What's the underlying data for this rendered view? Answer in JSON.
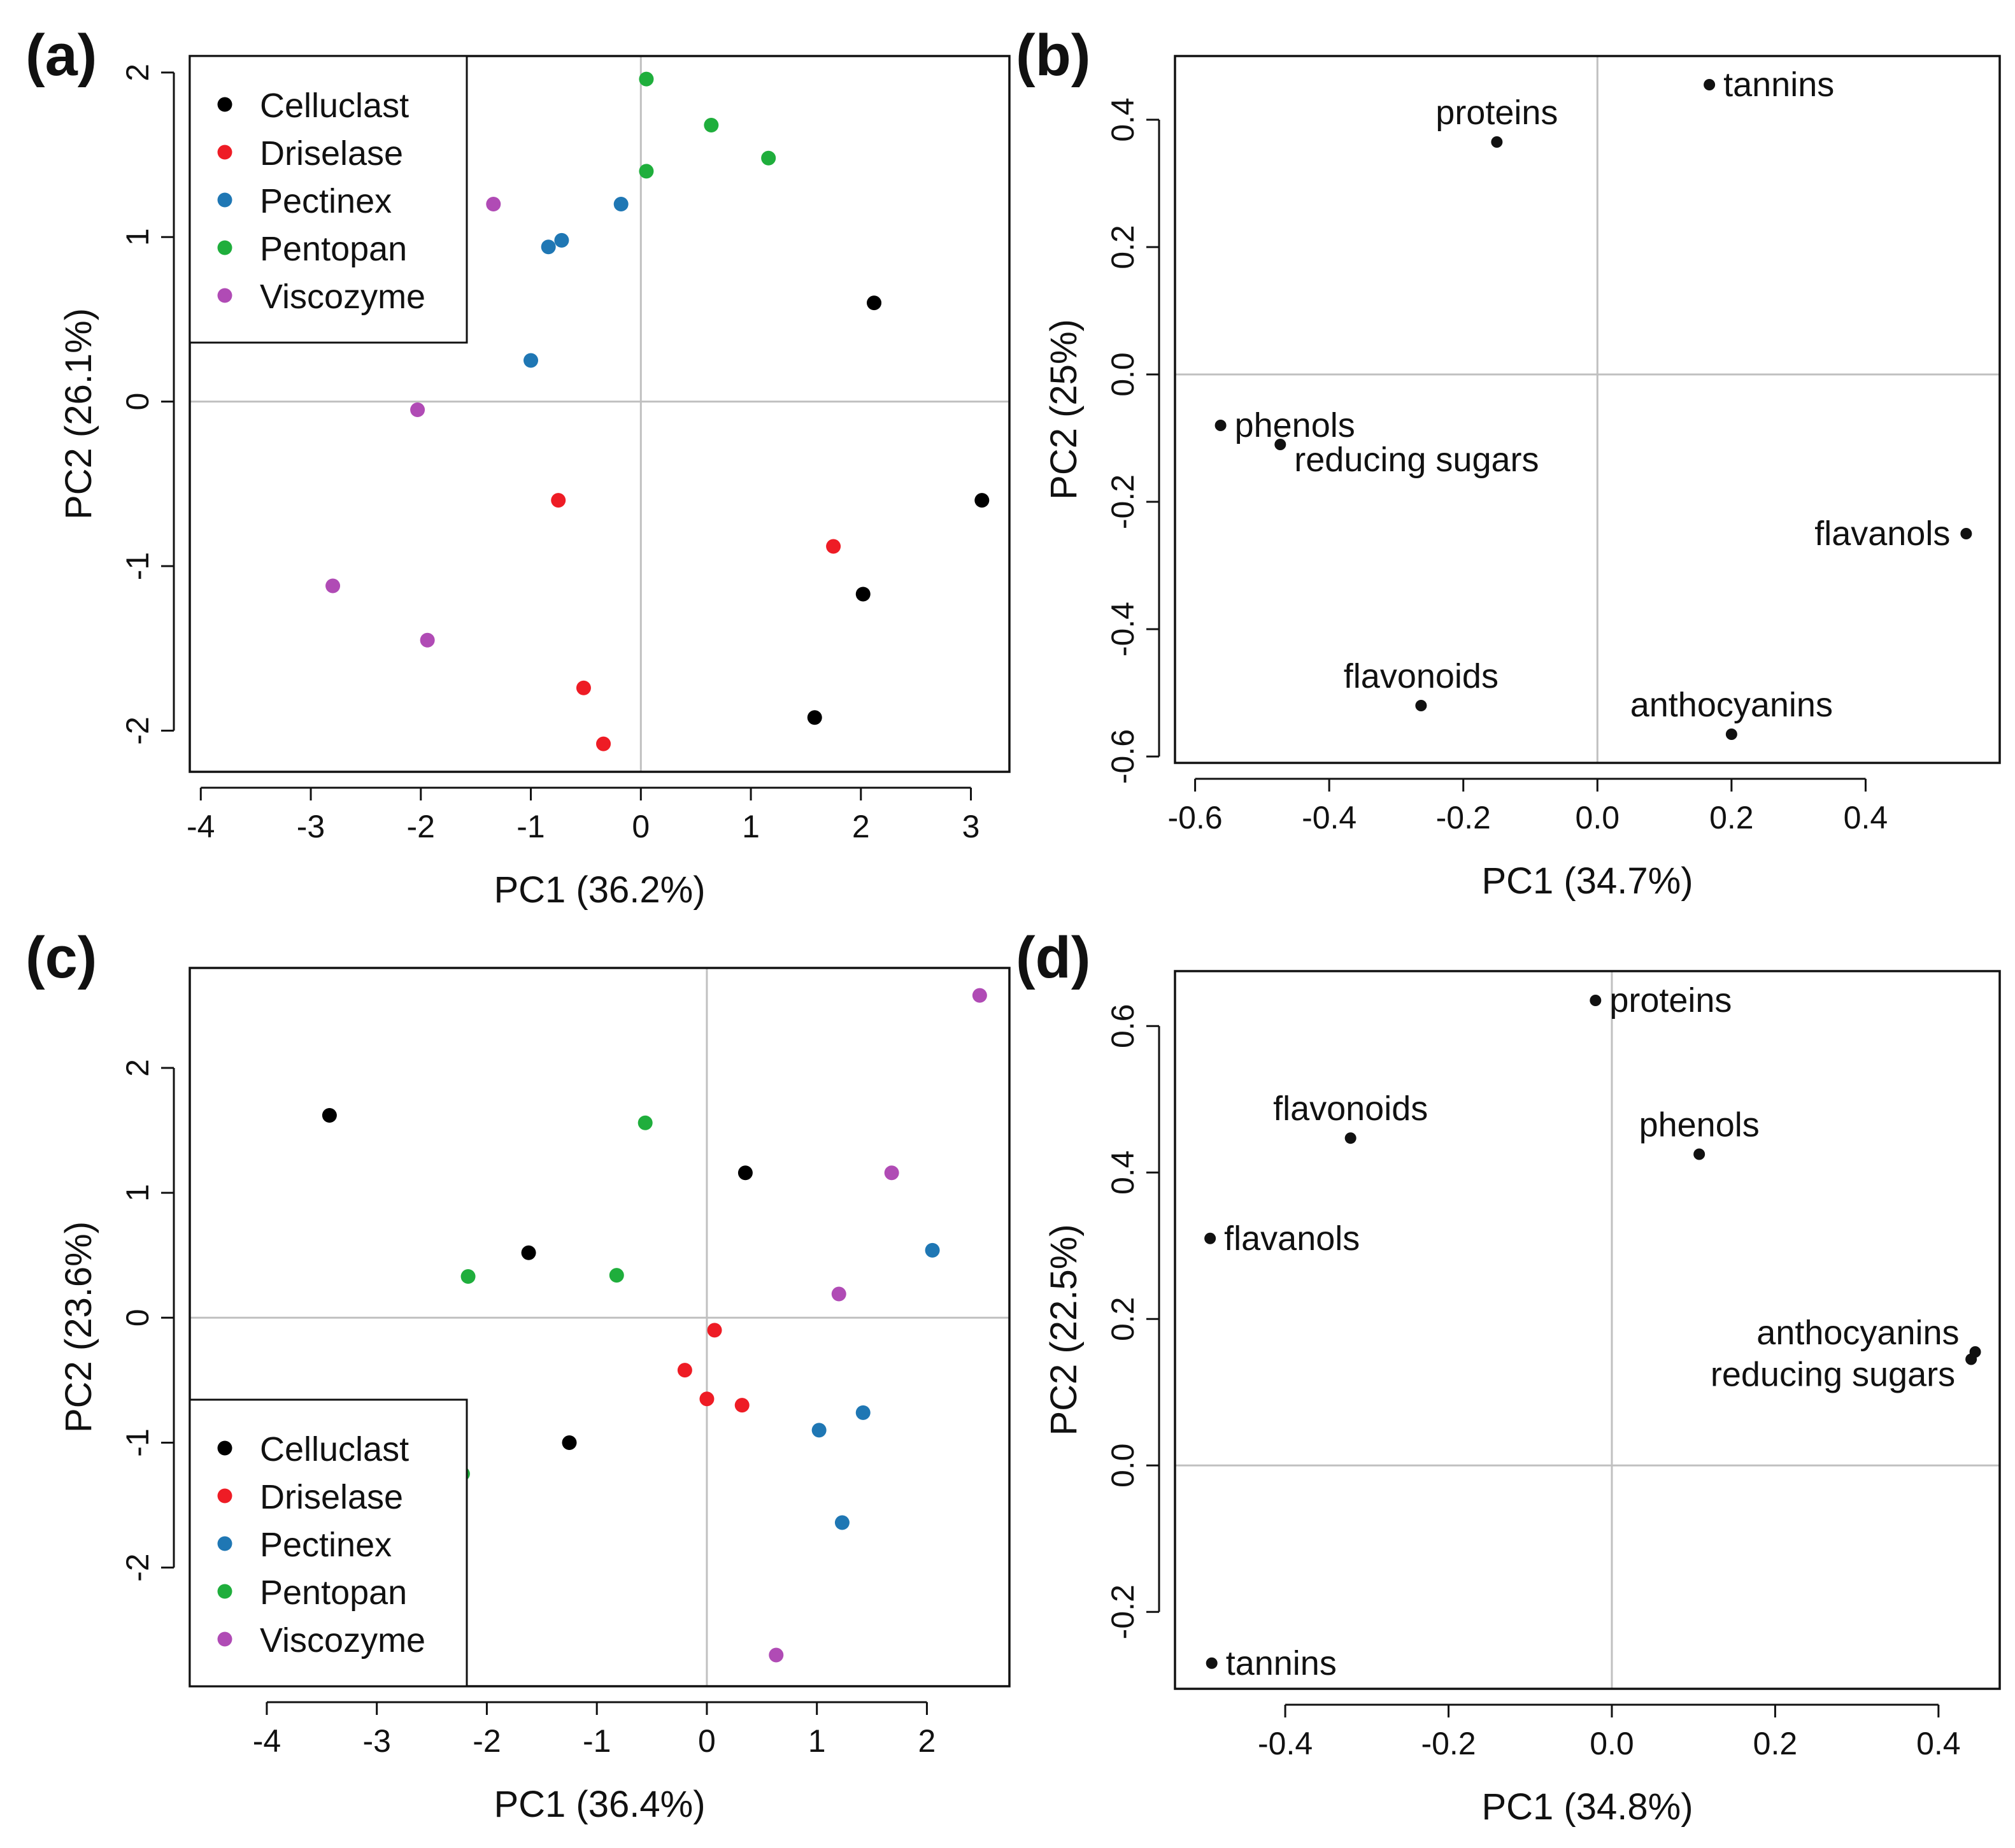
{
  "figure": {
    "panel_letters": [
      "(a)",
      "(b)",
      "(c)",
      "(d)"
    ],
    "colors": {
      "Celluclast": "#000000",
      "Driselase": "#ee1c25",
      "Pectinex": "#1f77b4",
      "Pentopan": "#1fae3c",
      "Viscozyme": "#b04bb5",
      "axis": "#111111",
      "reference_line": "#c0c0c0"
    }
  },
  "chart_data": [
    {
      "panel": "(a)",
      "type": "scatter",
      "xlabel": "PC1 (36.2%)",
      "ylabel": "PC2 (26.1%)",
      "xlim": [
        -4.1,
        3.35
      ],
      "ylim": [
        -2.25,
        2.1
      ],
      "xticks": [
        -4,
        -3,
        -2,
        -1,
        0,
        1,
        2,
        3
      ],
      "xtick_labels": [
        "-4",
        "-3",
        "-2",
        "-1",
        "0",
        "1",
        "2",
        "3"
      ],
      "yticks": [
        -2,
        -1,
        0,
        1,
        2
      ],
      "ytick_labels": [
        "-2",
        "-1",
        "0",
        "1",
        "2"
      ],
      "reference_lines": {
        "x": 0,
        "y": 0
      },
      "legend": {
        "position": "top-left",
        "entries": [
          "Celluclast",
          "Driselase",
          "Pectinex",
          "Pentopan",
          "Viscozyme"
        ]
      },
      "series": [
        {
          "name": "Celluclast",
          "points": [
            [
              2.12,
              0.6
            ],
            [
              3.1,
              -0.6
            ],
            [
              2.02,
              -1.17
            ],
            [
              1.58,
              -1.92
            ]
          ]
        },
        {
          "name": "Driselase",
          "points": [
            [
              -0.75,
              -0.6
            ],
            [
              1.75,
              -0.88
            ],
            [
              -0.52,
              -1.74
            ],
            [
              -0.34,
              -2.08
            ]
          ]
        },
        {
          "name": "Pectinex",
          "points": [
            [
              -0.72,
              0.98
            ],
            [
              -0.84,
              0.94
            ],
            [
              -0.18,
              1.2
            ],
            [
              -1.0,
              0.25
            ]
          ]
        },
        {
          "name": "Pentopan",
          "points": [
            [
              0.05,
              1.96
            ],
            [
              0.64,
              1.68
            ],
            [
              1.16,
              1.48
            ],
            [
              0.05,
              1.4
            ]
          ]
        },
        {
          "name": "Viscozyme",
          "points": [
            [
              -1.34,
              1.2
            ],
            [
              -2.03,
              -0.05
            ],
            [
              -2.8,
              -1.12
            ],
            [
              -1.94,
              -1.45
            ]
          ]
        }
      ]
    },
    {
      "panel": "(b)",
      "type": "scatter",
      "xlabel": "PC1 (34.7%)",
      "ylabel": "PC2 (25%)",
      "xlim": [
        -0.63,
        0.6
      ],
      "ylim": [
        -0.61,
        0.5
      ],
      "xticks": [
        -0.6,
        -0.4,
        -0.2,
        0.0,
        0.2,
        0.4
      ],
      "xtick_labels": [
        "-0.6",
        "-0.4",
        "-0.2",
        "0.0",
        "0.2",
        "0.4"
      ],
      "yticks": [
        -0.6,
        -0.4,
        -0.2,
        0.0,
        0.2,
        0.4
      ],
      "ytick_labels": [
        "-0.6",
        "-0.4",
        "-0.2",
        "0.0",
        "0.2",
        "0.4"
      ],
      "reference_lines": {
        "x": 0,
        "y": 0
      },
      "points": [
        {
          "label": "tannins",
          "x": 0.167,
          "y": 0.455,
          "label_side": "right"
        },
        {
          "label": "proteins",
          "x": -0.15,
          "y": 0.365,
          "label_side": "above"
        },
        {
          "label": "phenols",
          "x": -0.562,
          "y": -0.08,
          "label_side": "right"
        },
        {
          "label": "reducing sugars",
          "x": -0.473,
          "y": -0.11,
          "label_side": "right-below"
        },
        {
          "label": "flavanols",
          "x": 0.55,
          "y": -0.25,
          "label_side": "left"
        },
        {
          "label": "flavonoids",
          "x": -0.263,
          "y": -0.52,
          "label_side": "above"
        },
        {
          "label": "anthocyanins",
          "x": 0.2,
          "y": -0.565,
          "label_side": "above"
        }
      ]
    },
    {
      "panel": "(c)",
      "type": "scatter",
      "xlabel": "PC1 (36.4%)",
      "ylabel": "PC2 (23.6%)",
      "xlim": [
        -4.7,
        2.75
      ],
      "ylim": [
        -2.95,
        2.8
      ],
      "xticks": [
        -4,
        -3,
        -2,
        -1,
        0,
        1,
        2
      ],
      "xtick_labels": [
        "-4",
        "-3",
        "-2",
        "-1",
        "0",
        "1",
        "2"
      ],
      "yticks": [
        -2,
        -1,
        0,
        1,
        2
      ],
      "ytick_labels": [
        "-2",
        "-1",
        "0",
        "1",
        "2"
      ],
      "reference_lines": {
        "x": 0,
        "y": 0
      },
      "legend": {
        "position": "bottom-left",
        "entries": [
          "Celluclast",
          "Driselase",
          "Pectinex",
          "Pentopan",
          "Viscozyme"
        ]
      },
      "series": [
        {
          "name": "Celluclast",
          "points": [
            [
              -3.43,
              1.62
            ],
            [
              0.35,
              1.16
            ],
            [
              -1.62,
              0.52
            ],
            [
              -1.25,
              -1.0
            ]
          ]
        },
        {
          "name": "Driselase",
          "points": [
            [
              0.07,
              -0.1
            ],
            [
              -0.2,
              -0.42
            ],
            [
              0.0,
              -0.65
            ],
            [
              0.32,
              -0.7
            ]
          ]
        },
        {
          "name": "Pectinex",
          "points": [
            [
              2.05,
              0.54
            ],
            [
              1.42,
              -0.76
            ],
            [
              1.02,
              -0.9
            ],
            [
              1.23,
              -1.64
            ]
          ]
        },
        {
          "name": "Pentopan",
          "points": [
            [
              -0.56,
              1.56
            ],
            [
              -2.17,
              0.33
            ],
            [
              -0.82,
              0.34
            ],
            [
              -2.22,
              -1.25
            ]
          ]
        },
        {
          "name": "Viscozyme",
          "points": [
            [
              2.48,
              2.58
            ],
            [
              1.68,
              1.16
            ],
            [
              1.2,
              0.19
            ],
            [
              0.63,
              -2.7
            ]
          ]
        }
      ]
    },
    {
      "panel": "(d)",
      "type": "scatter",
      "xlabel": "PC1 (34.8%)",
      "ylabel": "PC2 (22.5%)",
      "xlim": [
        -0.535,
        0.475
      ],
      "ylim": [
        -0.305,
        0.675
      ],
      "xticks": [
        -0.4,
        -0.2,
        0.0,
        0.2,
        0.4
      ],
      "xtick_labels": [
        "-0.4",
        "-0.2",
        "0.0",
        "0.2",
        "0.4"
      ],
      "yticks": [
        -0.2,
        0.0,
        0.2,
        0.4,
        0.6
      ],
      "ytick_labels": [
        "-0.2",
        "0.0",
        "0.2",
        "0.4",
        "0.6"
      ],
      "reference_lines": {
        "x": 0,
        "y": 0
      },
      "points": [
        {
          "label": "proteins",
          "x": -0.02,
          "y": 0.635,
          "label_side": "right"
        },
        {
          "label": "flavonoids",
          "x": -0.32,
          "y": 0.447,
          "label_side": "above"
        },
        {
          "label": "phenols",
          "x": 0.107,
          "y": 0.425,
          "label_side": "above"
        },
        {
          "label": "flavanols",
          "x": -0.492,
          "y": 0.31,
          "label_side": "right"
        },
        {
          "label": "anthocyanins",
          "x": 0.445,
          "y": 0.155,
          "label_side": "left-above"
        },
        {
          "label": "reducing sugars",
          "x": 0.44,
          "y": 0.145,
          "label_side": "left-below"
        },
        {
          "label": "tannins",
          "x": -0.49,
          "y": -0.27,
          "label_side": "right"
        }
      ]
    }
  ]
}
